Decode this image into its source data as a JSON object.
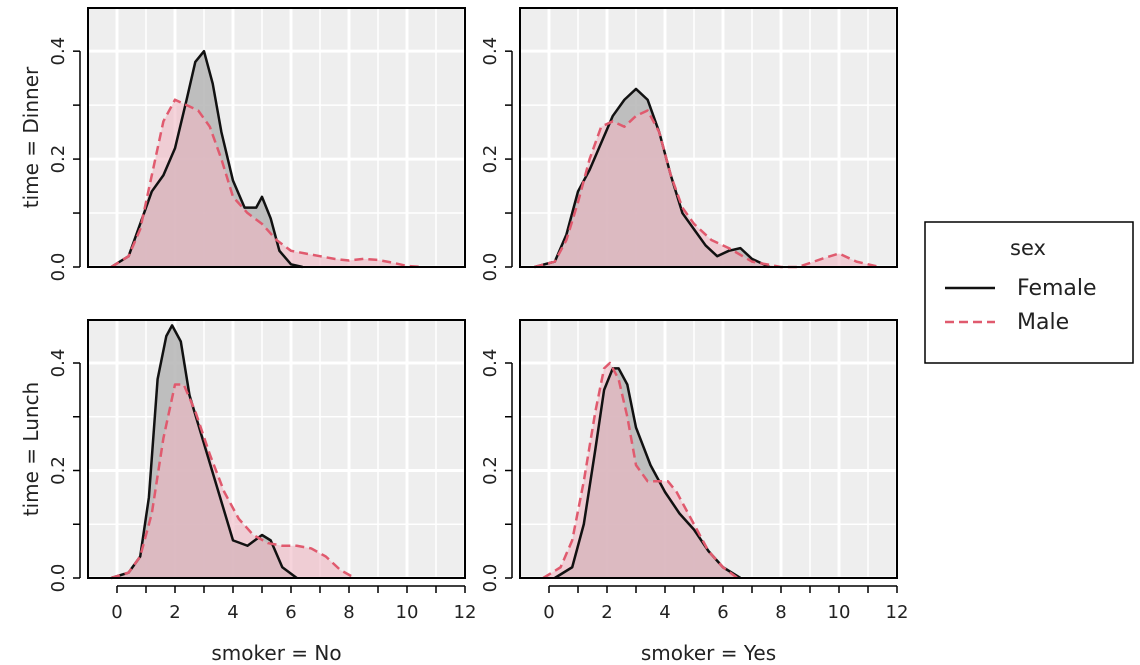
{
  "chart_data": {
    "type": "area",
    "legend": {
      "title": "sex",
      "placement": "right",
      "entries": [
        {
          "name": "Female",
          "color": "#111111",
          "line": "solid"
        },
        {
          "name": "Male",
          "color": "#E05A6E",
          "line": "dashed"
        }
      ]
    },
    "fill_colors": {
      "Female": "#b5b5b5",
      "Male": "#f0b7c3"
    },
    "panel_background": "#eeeeee",
    "grid": true,
    "xlim": [
      -1,
      12
    ],
    "ylim": [
      0,
      0.48
    ],
    "x_ticks": [
      "0",
      "2",
      "4",
      "6",
      "8",
      "10",
      "12"
    ],
    "y_ticks": [
      "0.0",
      "0.2",
      "0.4"
    ],
    "row_labels": [
      "time = Dinner",
      "time = Lunch"
    ],
    "col_labels": [
      "smoker = No",
      "smoker = Yes"
    ],
    "panels": [
      {
        "row": "Dinner",
        "col": "No",
        "series": [
          {
            "name": "Female",
            "x": [
              -0.2,
              0.4,
              0.8,
              1.2,
              1.6,
              2.0,
              2.4,
              2.7,
              3.0,
              3.3,
              3.6,
              4.0,
              4.4,
              4.8,
              5.0,
              5.3,
              5.6,
              6.0,
              6.4
            ],
            "y": [
              0.0,
              0.02,
              0.08,
              0.14,
              0.17,
              0.22,
              0.31,
              0.38,
              0.4,
              0.34,
              0.25,
              0.16,
              0.11,
              0.11,
              0.13,
              0.09,
              0.03,
              0.005,
              0.0
            ]
          },
          {
            "name": "Male",
            "x": [
              -0.2,
              0.4,
              0.8,
              1.2,
              1.6,
              2.0,
              2.4,
              2.8,
              3.2,
              3.6,
              4.0,
              4.5,
              5.0,
              5.5,
              6.0,
              6.5,
              7.0,
              7.5,
              8.0,
              8.5,
              9.0,
              9.5,
              10.0,
              10.5
            ],
            "y": [
              0.0,
              0.02,
              0.07,
              0.17,
              0.27,
              0.31,
              0.3,
              0.29,
              0.26,
              0.2,
              0.13,
              0.1,
              0.08,
              0.05,
              0.03,
              0.025,
              0.02,
              0.015,
              0.012,
              0.015,
              0.013,
              0.008,
              0.002,
              0.0
            ]
          }
        ]
      },
      {
        "row": "Dinner",
        "col": "Yes",
        "series": [
          {
            "name": "Female",
            "x": [
              -0.5,
              0.2,
              0.6,
              1.0,
              1.4,
              1.8,
              2.2,
              2.6,
              3.0,
              3.4,
              3.8,
              4.2,
              4.6,
              5.0,
              5.4,
              5.8,
              6.2,
              6.6,
              7.0,
              7.6
            ],
            "y": [
              0.0,
              0.01,
              0.06,
              0.14,
              0.18,
              0.23,
              0.28,
              0.31,
              0.33,
              0.31,
              0.25,
              0.17,
              0.1,
              0.07,
              0.04,
              0.02,
              0.03,
              0.035,
              0.015,
              0.0
            ]
          },
          {
            "name": "Male",
            "x": [
              -0.5,
              0.2,
              0.6,
              1.0,
              1.4,
              1.8,
              2.2,
              2.6,
              3.0,
              3.4,
              3.8,
              4.2,
              4.6,
              5.0,
              5.6,
              6.2,
              7.0,
              8.0,
              8.6,
              9.4,
              10.0,
              10.6,
              11.4
            ],
            "y": [
              0.0,
              0.01,
              0.05,
              0.12,
              0.2,
              0.26,
              0.27,
              0.26,
              0.28,
              0.29,
              0.25,
              0.17,
              0.11,
              0.08,
              0.05,
              0.035,
              0.01,
              0.0,
              0.0,
              0.015,
              0.025,
              0.01,
              0.0
            ]
          }
        ]
      },
      {
        "row": "Lunch",
        "col": "No",
        "series": [
          {
            "name": "Female",
            "x": [
              -0.2,
              0.4,
              0.8,
              1.1,
              1.4,
              1.7,
              1.9,
              2.2,
              2.5,
              3.0,
              3.5,
              4.0,
              4.5,
              5.0,
              5.3,
              5.7,
              6.2
            ],
            "y": [
              0.0,
              0.01,
              0.04,
              0.15,
              0.37,
              0.45,
              0.47,
              0.44,
              0.34,
              0.25,
              0.16,
              0.07,
              0.06,
              0.08,
              0.07,
              0.02,
              0.0
            ]
          },
          {
            "name": "Male",
            "x": [
              -0.2,
              0.4,
              0.8,
              1.2,
              1.6,
              2.0,
              2.3,
              2.7,
              3.2,
              3.7,
              4.2,
              4.7,
              5.2,
              5.7,
              6.2,
              6.7,
              7.2,
              7.7,
              8.2
            ],
            "y": [
              0.0,
              0.01,
              0.04,
              0.12,
              0.26,
              0.36,
              0.36,
              0.31,
              0.23,
              0.16,
              0.11,
              0.08,
              0.065,
              0.06,
              0.06,
              0.055,
              0.04,
              0.015,
              0.0
            ]
          }
        ]
      },
      {
        "row": "Lunch",
        "col": "Yes",
        "series": [
          {
            "name": "Female",
            "x": [
              0.2,
              0.8,
              1.2,
              1.6,
              1.9,
              2.2,
              2.4,
              2.7,
              3.0,
              3.5,
              4.0,
              4.5,
              5.0,
              5.5,
              6.0,
              6.6
            ],
            "y": [
              0.0,
              0.02,
              0.1,
              0.24,
              0.35,
              0.39,
              0.39,
              0.36,
              0.28,
              0.21,
              0.16,
              0.12,
              0.09,
              0.05,
              0.02,
              0.0
            ]
          },
          {
            "name": "Male",
            "x": [
              -0.2,
              0.4,
              0.8,
              1.2,
              1.6,
              1.9,
              2.1,
              2.4,
              2.7,
              3.0,
              3.4,
              3.8,
              4.1,
              4.4,
              4.7,
              5.1,
              5.5,
              6.0,
              6.5
            ],
            "y": [
              0.0,
              0.02,
              0.07,
              0.18,
              0.31,
              0.39,
              0.4,
              0.37,
              0.3,
              0.21,
              0.18,
              0.18,
              0.18,
              0.16,
              0.13,
              0.09,
              0.05,
              0.02,
              0.0
            ]
          }
        ]
      }
    ]
  }
}
